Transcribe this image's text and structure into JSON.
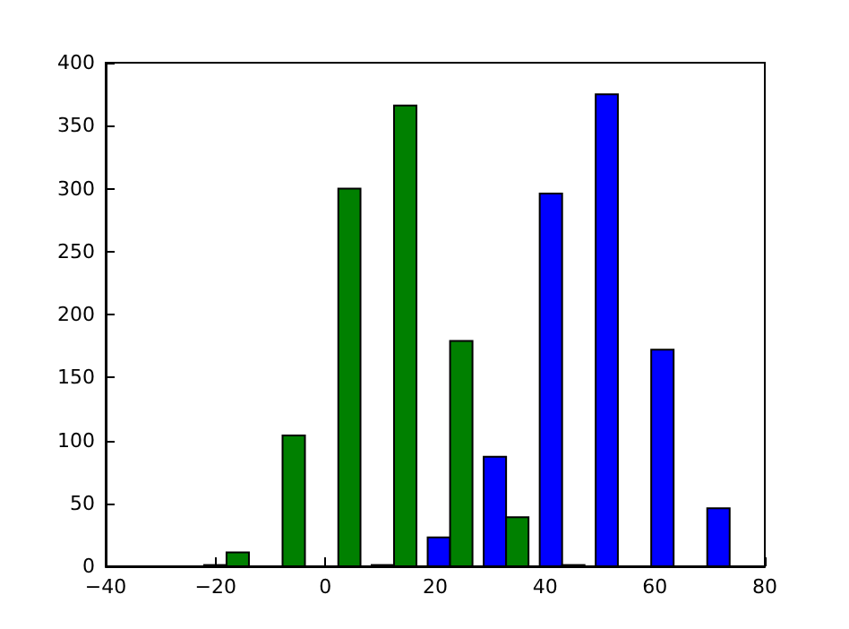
{
  "chart_data": {
    "type": "histogram",
    "bins": [
      -23.1,
      -12.9,
      -2.7,
      7.4,
      17.6,
      27.8,
      38.0,
      48.2,
      58.3,
      68.5,
      78.7
    ],
    "series": [
      {
        "color": "#0000ff",
        "values": [
          1,
          0,
          0,
          1,
          23,
          87,
          296,
          375,
          172,
          46
        ]
      },
      {
        "color": "#008000",
        "values": [
          11,
          104,
          300,
          366,
          179,
          39,
          1,
          0,
          0,
          0
        ]
      }
    ],
    "xlim": [
      -40,
      80
    ],
    "xticks": [
      -40,
      -20,
      0,
      20,
      40,
      60,
      80
    ],
    "ylim": [
      0,
      400
    ],
    "yticks": [
      0,
      50,
      100,
      150,
      200,
      250,
      300,
      350,
      400
    ],
    "grid": false
  }
}
